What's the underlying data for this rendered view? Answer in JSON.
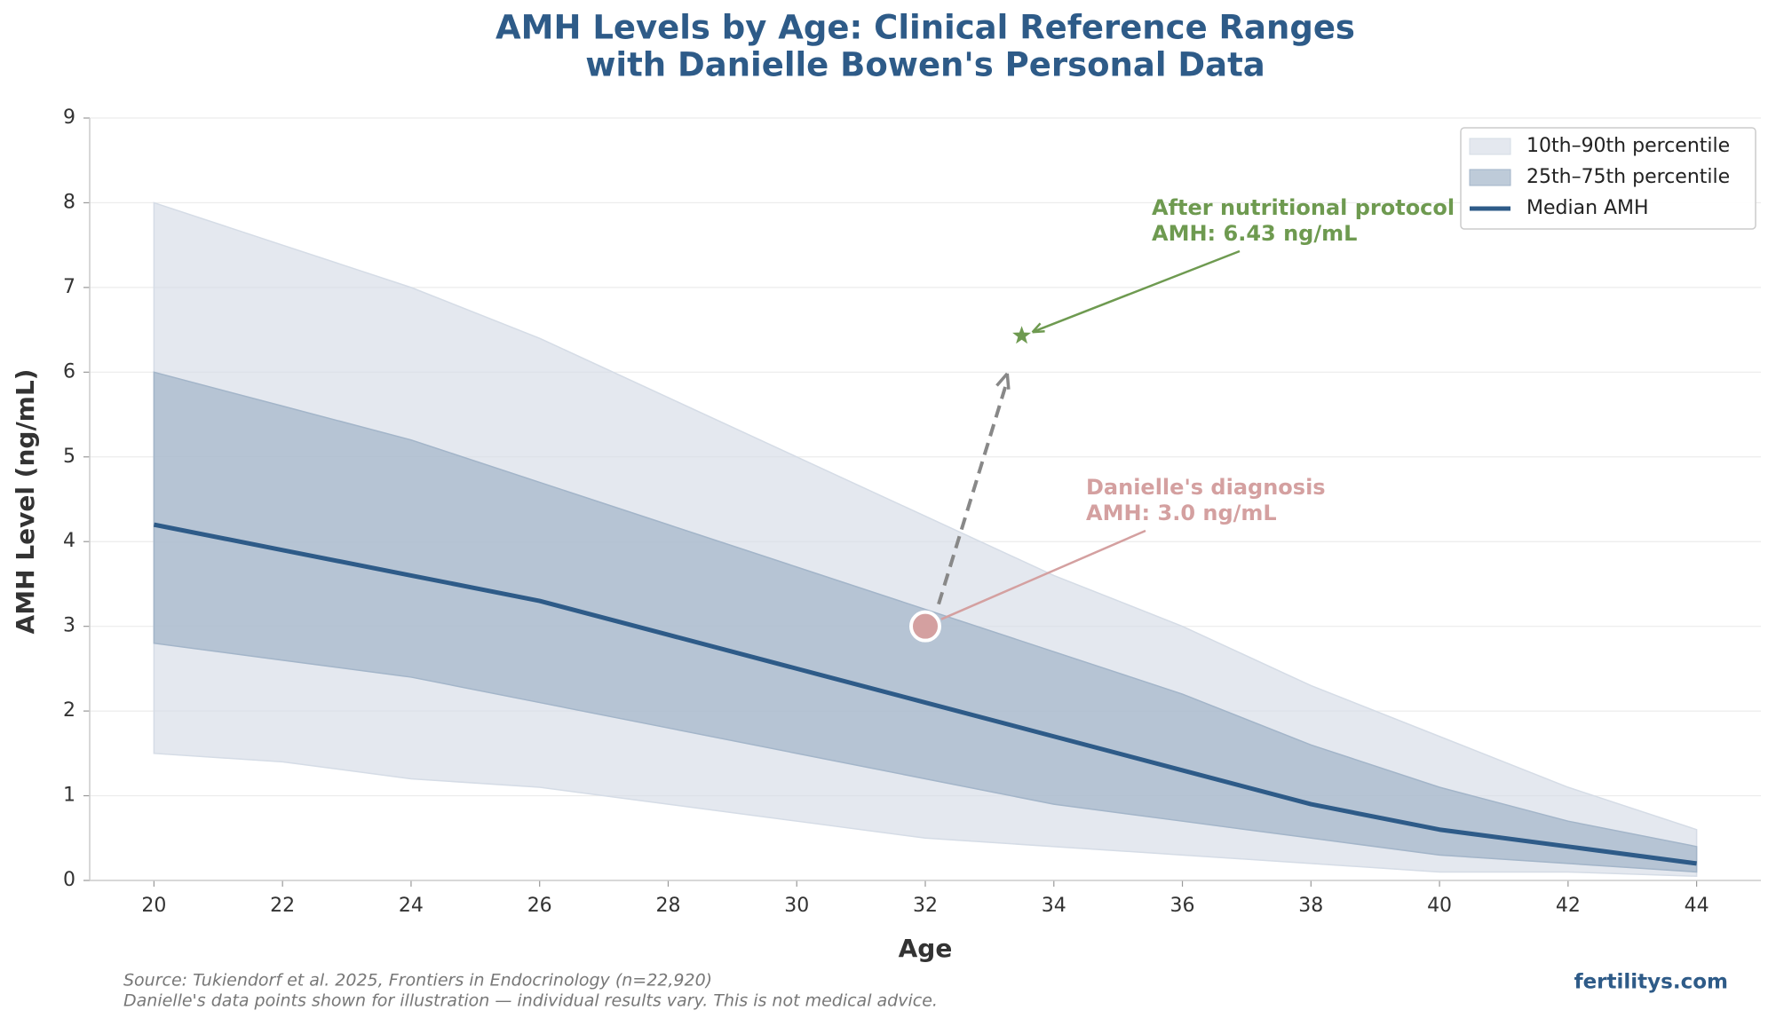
{
  "chart_data": {
    "type": "line",
    "title": [
      "AMH Levels by Age: Clinical Reference Ranges",
      "with Danielle Bowen's Personal Data"
    ],
    "x_label": "Age",
    "y_label": "AMH Level (ng/mL)",
    "x": [
      20,
      22,
      24,
      26,
      28,
      30,
      32,
      34,
      36,
      38,
      40,
      42,
      44
    ],
    "bands": [
      {
        "name": "10th–90th percentile",
        "color": "#d5dce6",
        "lower": [
          1.5,
          1.4,
          1.2,
          1.1,
          0.9,
          0.7,
          0.5,
          0.4,
          0.3,
          0.2,
          0.1,
          0.1,
          0.05
        ],
        "upper": [
          8.0,
          7.5,
          7.0,
          6.4,
          5.7,
          5.0,
          4.3,
          3.6,
          3.0,
          2.3,
          1.7,
          1.1,
          0.6
        ]
      },
      {
        "name": "25th–75th percentile",
        "color": "#a3b5c9",
        "lower": [
          2.8,
          2.6,
          2.4,
          2.1,
          1.8,
          1.5,
          1.2,
          0.9,
          0.7,
          0.5,
          0.3,
          0.2,
          0.1
        ],
        "upper": [
          6.0,
          5.6,
          5.2,
          4.7,
          4.2,
          3.7,
          3.2,
          2.7,
          2.2,
          1.6,
          1.1,
          0.7,
          0.4
        ]
      }
    ],
    "series": [
      {
        "name": "Median AMH",
        "color": "#2e5b88",
        "values": [
          4.2,
          3.9,
          3.6,
          3.3,
          2.9,
          2.5,
          2.1,
          1.7,
          1.3,
          0.9,
          0.6,
          0.4,
          0.2
        ]
      }
    ],
    "points": [
      {
        "label": [
          "Danielle's diagnosis",
          "AMH: 3.0 ng/mL"
        ],
        "x": 32,
        "y": 3.0,
        "color": "#d4a0a0"
      },
      {
        "label": [
          "After nutritional protocol",
          "AMH: 6.43 ng/mL"
        ],
        "x": 33.5,
        "y": 6.43,
        "color": "#6e9a50"
      }
    ],
    "xlim": [
      19,
      45
    ],
    "ylim": [
      0,
      9
    ],
    "xticks": [
      20,
      22,
      24,
      26,
      28,
      30,
      32,
      34,
      36,
      38,
      40,
      42,
      44
    ],
    "yticks": [
      0,
      1,
      2,
      3,
      4,
      5,
      6,
      7,
      8,
      9
    ],
    "grid": true,
    "legend": "upper right",
    "source": [
      "Source: Tukiendorf et al. 2025, Frontiers in Endocrinology (n=22,920)",
      "Danielle's data points shown for illustration — individual results vary. This is not medical advice."
    ],
    "brand": "fertilitys.com"
  }
}
